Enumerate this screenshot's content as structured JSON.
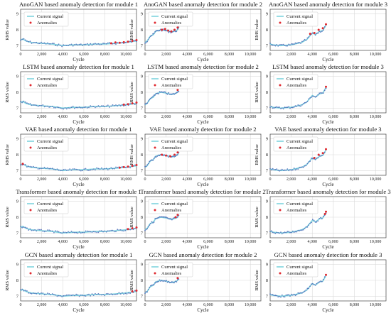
{
  "figure": {
    "legend": {
      "signal_label": "Current signal",
      "anomaly_label": "Anomalies"
    },
    "colors": {
      "signal": "#7fd3de",
      "anomaly": "#e0282e",
      "dots": "#4a69b8",
      "grid": "#d9d9d9",
      "axis": "#444444"
    },
    "axis_labels": {
      "x": "Cycle",
      "y": "RMS value"
    },
    "x_ticks": [
      "0",
      "2,000",
      "4,000",
      "6,000",
      "8,000",
      "10,000"
    ],
    "y_ticks": [
      "7",
      "8",
      "9"
    ]
  },
  "chart_data": [
    {
      "type": "line",
      "title": "AnoGAN based anomaly detection for module 1",
      "xlabel": "Cycle",
      "ylabel": "RMS value",
      "xlim": [
        0,
        11000
      ],
      "ylim": [
        6.7,
        9.3
      ],
      "grid": true,
      "legend_placement": "top-left",
      "series": [
        {
          "name": "Current signal",
          "x": [
            0,
            200,
            500,
            1000,
            2000,
            3000,
            3500,
            4000,
            5000,
            6000,
            7000,
            8000,
            9000,
            10000,
            11000
          ],
          "values": [
            7.35,
            7.42,
            7.3,
            7.2,
            7.15,
            7.1,
            7.05,
            7.0,
            7.05,
            7.05,
            7.1,
            7.1,
            7.15,
            7.2,
            7.3
          ]
        },
        {
          "name": "Anomalies",
          "x": [
            8600,
            9000,
            9400,
            9800,
            10200,
            10600,
            11000
          ],
          "values": [
            7.15,
            7.2,
            7.18,
            7.22,
            7.25,
            7.3,
            7.35
          ]
        }
      ]
    },
    {
      "type": "line",
      "title": "AnoGAN based anomaly detection for module 2",
      "xlabel": "Cycle",
      "ylabel": "RMS value",
      "xlim": [
        0,
        11000
      ],
      "ylim": [
        6.7,
        9.3
      ],
      "grid": true,
      "legend_placement": "top-left",
      "series": [
        {
          "name": "Current signal",
          "x": [
            0,
            200,
            500,
            800,
            1000,
            1500,
            2000,
            2500,
            3000,
            3200
          ],
          "values": [
            7.2,
            7.3,
            7.6,
            7.7,
            7.9,
            8.0,
            7.95,
            7.85,
            7.95,
            8.1
          ]
        },
        {
          "name": "Anomalies",
          "x": [
            1600,
            1900,
            2200,
            2500,
            2800,
            3100
          ],
          "values": [
            8.0,
            8.05,
            7.95,
            7.9,
            8.0,
            8.15
          ]
        }
      ]
    },
    {
      "type": "line",
      "title": "AnoGAN based anomaly detection for module 3",
      "xlabel": "Cycle",
      "ylabel": "RMS value",
      "xlim": [
        0,
        11000
      ],
      "ylim": [
        6.7,
        9.3
      ],
      "grid": true,
      "legend_placement": "top-left",
      "series": [
        {
          "name": "Current signal",
          "x": [
            0,
            300,
            1000,
            2000,
            3000,
            3500,
            4000,
            4300,
            4700,
            5000,
            5300
          ],
          "values": [
            7.1,
            7.05,
            7.0,
            7.05,
            7.2,
            7.4,
            7.8,
            7.7,
            7.9,
            7.95,
            8.3
          ]
        },
        {
          "name": "Anomalies",
          "x": [
            3800,
            4200,
            4600,
            5000,
            5300
          ],
          "values": [
            7.75,
            7.8,
            8.0,
            8.1,
            8.35
          ]
        }
      ]
    },
    {
      "type": "line",
      "title": "LSTM based anomaly detection for module 1",
      "xlabel": "Cycle",
      "ylabel": "RMS value",
      "xlim": [
        0,
        11000
      ],
      "ylim": [
        6.7,
        9.3
      ],
      "grid": true,
      "legend_placement": "top-left",
      "series": [
        {
          "name": "Current signal",
          "x": [
            0,
            200,
            500,
            1000,
            2000,
            3000,
            3500,
            4000,
            5000,
            6000,
            7000,
            8000,
            9000,
            10000,
            11000
          ],
          "values": [
            7.35,
            7.42,
            7.3,
            7.2,
            7.15,
            7.1,
            7.05,
            7.0,
            7.05,
            7.05,
            7.1,
            7.1,
            7.15,
            7.2,
            7.3
          ]
        },
        {
          "name": "Anomalies",
          "x": [
            9800,
            10200,
            10600,
            11000
          ],
          "values": [
            7.22,
            7.25,
            7.3,
            7.35
          ]
        }
      ]
    },
    {
      "type": "line",
      "title": "LSTM based anomaly detection for module 2",
      "xlabel": "Cycle",
      "ylabel": "RMS value",
      "xlim": [
        0,
        11000
      ],
      "ylim": [
        6.7,
        9.3
      ],
      "grid": true,
      "legend_placement": "top-left",
      "series": [
        {
          "name": "Current signal",
          "x": [
            0,
            200,
            500,
            800,
            1000,
            1500,
            2000,
            2500,
            3000,
            3200
          ],
          "values": [
            7.2,
            7.3,
            7.6,
            7.7,
            7.9,
            8.0,
            7.95,
            7.85,
            7.95,
            8.1
          ]
        },
        {
          "name": "Anomalies",
          "x": [
            3100
          ],
          "values": [
            8.15
          ]
        }
      ]
    },
    {
      "type": "line",
      "title": "LSTM based anomaly detection for module 3",
      "xlabel": "Cycle",
      "ylabel": "RMS value",
      "xlim": [
        0,
        11000
      ],
      "ylim": [
        6.7,
        9.3
      ],
      "grid": true,
      "legend_placement": "top-left",
      "series": [
        {
          "name": "Current signal",
          "x": [
            0,
            300,
            1000,
            2000,
            3000,
            3500,
            4000,
            4300,
            4700,
            5000,
            5300
          ],
          "values": [
            7.1,
            7.05,
            7.0,
            7.05,
            7.2,
            7.4,
            7.8,
            7.7,
            7.9,
            7.95,
            8.3
          ]
        },
        {
          "name": "Anomalies",
          "x": [
            5300
          ],
          "values": [
            8.35
          ]
        }
      ]
    },
    {
      "type": "line",
      "title": "VAE based anomaly detection for module 1",
      "xlabel": "Cycle",
      "ylabel": "RMS value",
      "xlim": [
        0,
        11000
      ],
      "ylim": [
        6.7,
        9.3
      ],
      "grid": true,
      "legend_placement": "top-left",
      "series": [
        {
          "name": "Current signal",
          "x": [
            0,
            200,
            500,
            1000,
            2000,
            3000,
            3500,
            4000,
            5000,
            6000,
            7000,
            8000,
            9000,
            10000,
            11000
          ],
          "values": [
            7.35,
            7.42,
            7.3,
            7.2,
            7.15,
            7.1,
            7.05,
            7.0,
            7.05,
            7.05,
            7.1,
            7.1,
            7.15,
            7.2,
            7.3
          ]
        },
        {
          "name": "Anomalies",
          "x": [
            200,
            9400,
            9800,
            10200,
            10600,
            11000
          ],
          "values": [
            7.42,
            7.18,
            7.22,
            7.25,
            7.3,
            7.35
          ]
        }
      ]
    },
    {
      "type": "line",
      "title": "VAE based anomaly detection for module 2",
      "xlabel": "Cycle",
      "ylabel": "RMS value",
      "xlim": [
        0,
        11000
      ],
      "ylim": [
        6.7,
        9.3
      ],
      "grid": true,
      "legend_placement": "top-left",
      "series": [
        {
          "name": "Current signal",
          "x": [
            0,
            200,
            500,
            800,
            1000,
            1500,
            2000,
            2500,
            3000,
            3200
          ],
          "values": [
            7.2,
            7.3,
            7.6,
            7.7,
            7.9,
            8.0,
            7.95,
            7.85,
            7.95,
            8.1
          ]
        },
        {
          "name": "Anomalies",
          "x": [
            1600,
            2000,
            2400,
            2800,
            3100
          ],
          "values": [
            8.0,
            7.95,
            7.9,
            8.0,
            8.15
          ]
        }
      ]
    },
    {
      "type": "line",
      "title": "VAE based anomaly detection for module 3",
      "xlabel": "Cycle",
      "ylabel": "RMS value",
      "xlim": [
        0,
        11000
      ],
      "ylim": [
        6.7,
        9.3
      ],
      "grid": true,
      "legend_placement": "top-left",
      "series": [
        {
          "name": "Current signal",
          "x": [
            0,
            300,
            1000,
            2000,
            3000,
            3500,
            4000,
            4300,
            4700,
            5000,
            5300
          ],
          "values": [
            7.1,
            7.05,
            7.0,
            7.05,
            7.2,
            7.4,
            7.8,
            7.7,
            7.9,
            7.95,
            8.3
          ]
        },
        {
          "name": "Anomalies",
          "x": [
            4200,
            4600,
            5000,
            5300
          ],
          "values": [
            7.8,
            8.0,
            8.1,
            8.35
          ]
        }
      ]
    },
    {
      "type": "line",
      "title": "Transformer based anomaly detection for module 1",
      "xlabel": "Cycle",
      "ylabel": "RMS value",
      "xlim": [
        0,
        11000
      ],
      "ylim": [
        6.7,
        9.3
      ],
      "grid": true,
      "legend_placement": "top-left",
      "series": [
        {
          "name": "Current signal",
          "x": [
            0,
            200,
            500,
            1000,
            2000,
            3000,
            3500,
            4000,
            5000,
            6000,
            7000,
            8000,
            9000,
            10000,
            11000
          ],
          "values": [
            7.35,
            7.42,
            7.3,
            7.2,
            7.15,
            7.1,
            7.05,
            7.0,
            7.05,
            7.05,
            7.1,
            7.1,
            7.15,
            7.2,
            7.3
          ]
        },
        {
          "name": "Anomalies",
          "x": [
            10200,
            10600,
            11000
          ],
          "values": [
            7.25,
            7.3,
            7.35
          ]
        }
      ]
    },
    {
      "type": "line",
      "title": "Transformer based anomaly detection for module 2",
      "xlabel": "Cycle",
      "ylabel": "RMS value",
      "xlim": [
        0,
        11000
      ],
      "ylim": [
        6.7,
        9.3
      ],
      "grid": true,
      "legend_placement": "top-left",
      "series": [
        {
          "name": "Current signal",
          "x": [
            0,
            200,
            500,
            800,
            1000,
            1500,
            2000,
            2500,
            3000,
            3200
          ],
          "values": [
            7.2,
            7.3,
            7.6,
            7.7,
            7.9,
            8.0,
            7.95,
            7.85,
            7.95,
            8.1
          ]
        },
        {
          "name": "Anomalies",
          "x": [
            2900,
            3100
          ],
          "values": [
            8.0,
            8.15
          ]
        }
      ]
    },
    {
      "type": "line",
      "title": "Transformer based anomaly detection for module 3",
      "xlabel": "Cycle",
      "ylabel": "RMS value",
      "xlim": [
        0,
        11000
      ],
      "ylim": [
        6.7,
        9.3
      ],
      "grid": true,
      "legend_placement": "top-left",
      "series": [
        {
          "name": "Current signal",
          "x": [
            0,
            300,
            1000,
            2000,
            3000,
            3500,
            4000,
            4300,
            4700,
            5000,
            5300
          ],
          "values": [
            7.1,
            7.05,
            7.0,
            7.05,
            7.2,
            7.4,
            7.8,
            7.7,
            7.9,
            7.95,
            8.3
          ]
        },
        {
          "name": "Anomalies",
          "x": [
            5200,
            5300
          ],
          "values": [
            8.2,
            8.35
          ]
        }
      ]
    },
    {
      "type": "line",
      "title": "GCN based anomaly detection for module 1",
      "xlabel": "Cycle",
      "ylabel": "RMS value",
      "xlim": [
        0,
        11000
      ],
      "ylim": [
        6.7,
        9.3
      ],
      "grid": true,
      "legend_placement": "top-left",
      "series": [
        {
          "name": "Current signal",
          "x": [
            0,
            200,
            500,
            1000,
            2000,
            3000,
            3500,
            4000,
            5000,
            6000,
            7000,
            8000,
            9000,
            10000,
            11000
          ],
          "values": [
            7.35,
            7.42,
            7.3,
            7.2,
            7.15,
            7.1,
            7.05,
            7.0,
            7.05,
            7.05,
            7.1,
            7.1,
            7.15,
            7.2,
            7.3
          ]
        },
        {
          "name": "Anomalies",
          "x": [
            10600,
            11000
          ],
          "values": [
            7.3,
            7.35
          ]
        }
      ]
    },
    {
      "type": "line",
      "title": "GCN based anomaly detection for module 2",
      "xlabel": "Cycle",
      "ylabel": "RMS value",
      "xlim": [
        0,
        11000
      ],
      "ylim": [
        6.7,
        9.3
      ],
      "grid": true,
      "legend_placement": "top-left",
      "series": [
        {
          "name": "Current signal",
          "x": [
            0,
            200,
            500,
            800,
            1000,
            1500,
            2000,
            2500,
            3000,
            3200
          ],
          "values": [
            7.2,
            7.3,
            7.6,
            7.7,
            7.9,
            8.0,
            7.95,
            7.85,
            7.95,
            8.1
          ]
        },
        {
          "name": "Anomalies",
          "x": [
            3100
          ],
          "values": [
            8.15
          ]
        }
      ]
    },
    {
      "type": "line",
      "title": "GCN based anomaly detection for module 3",
      "xlabel": "Cycle",
      "ylabel": "RMS value",
      "xlim": [
        0,
        11000
      ],
      "ylim": [
        6.7,
        9.3
      ],
      "grid": true,
      "legend_placement": "top-left",
      "series": [
        {
          "name": "Current signal",
          "x": [
            0,
            300,
            1000,
            2000,
            3000,
            3500,
            4000,
            4300,
            4700,
            5000,
            5300
          ],
          "values": [
            7.1,
            7.05,
            7.0,
            7.05,
            7.2,
            7.4,
            7.8,
            7.7,
            7.9,
            7.95,
            8.3
          ]
        },
        {
          "name": "Anomalies",
          "x": [
            5300
          ],
          "values": [
            8.35
          ]
        }
      ]
    }
  ]
}
